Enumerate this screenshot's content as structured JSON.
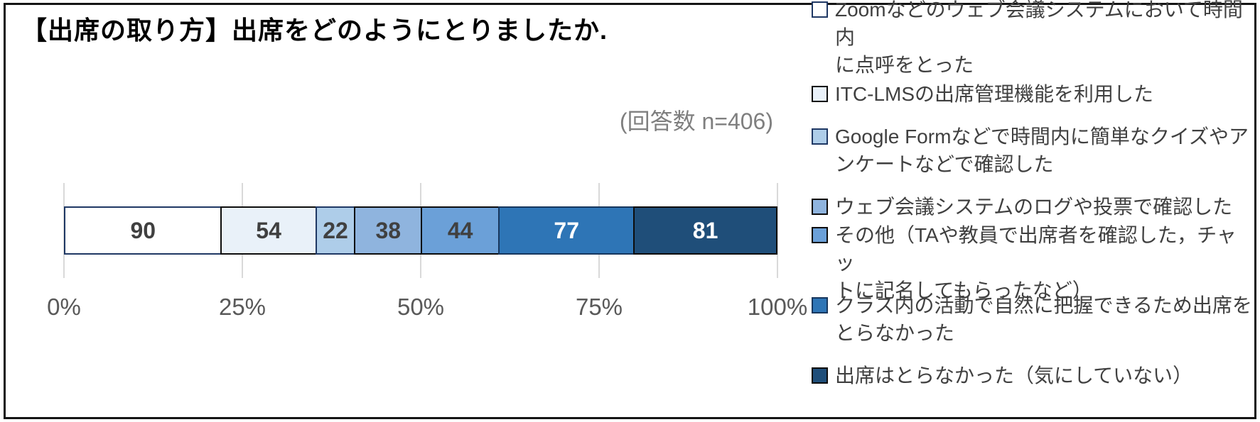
{
  "frame": {
    "border_color": "#141414",
    "background": "#ffffff"
  },
  "header": {
    "title": "【出席の取り方】出席をどのようにとりましたか."
  },
  "annotation": {
    "text": "(回答数 n=406)"
  },
  "chart_data": {
    "type": "bar",
    "orientation": "horizontal-stacked",
    "title": "【出席の取り方】出席をどのようにとりましたか.",
    "subtitle": "(回答数 n=406)",
    "total": 406,
    "xlim": [
      0,
      100
    ],
    "x_ticks": [
      "0%",
      "25%",
      "50%",
      "75%",
      "100%"
    ],
    "grid": true,
    "legend_position": "right",
    "segments": [
      {
        "label": "Zoomなどのウェブ会議システムにおいて時間内に点呼をとった",
        "value": 90,
        "fill": "#ffffff",
        "border": "#1f3864",
        "text_color": "#404040"
      },
      {
        "label": "ITC-LMSの出席管理機能を利用した",
        "value": 54,
        "fill": "#e9f1f9",
        "border": "#0d0d0d",
        "text_color": "#404040"
      },
      {
        "label": "Google Formなどで時間内に簡単なクイズやアンケートなどで確認した",
        "value": 22,
        "fill": "#aecde9",
        "border": "#1f3864",
        "text_color": "#404040"
      },
      {
        "label": "ウェブ会議システムのログや投票で確認した",
        "value": 38,
        "fill": "#8fb4de",
        "border": "#0d0d0d",
        "text_color": "#404040"
      },
      {
        "label": "その他（TAや教員で出席者を確認した，チャットに記名してもらったなど）",
        "value": 44,
        "fill": "#6ba0d8",
        "border": "#0d0d0d",
        "text_color": "#404040"
      },
      {
        "label": "クラス内の活動で自然に把握できるため出席をとらなかった",
        "value": 77,
        "fill": "#2e75b6",
        "border": "#17375e",
        "text_color": "#ffffff"
      },
      {
        "label": "出席はとらなかった（気にしていない）",
        "value": 81,
        "fill": "#1f4e79",
        "border": "#0d0d0d",
        "text_color": "#ffffff"
      }
    ]
  },
  "legend": {
    "items": [
      {
        "display": "Zoomなどのウェブ会議システムにおいて時間内\nに点呼をとった"
      },
      {
        "display": "ITC-LMSの出席管理機能を利用した"
      },
      {
        "display": "Google Formなどで時間内に簡単なクイズやア\nンケートなどで確認した"
      },
      {
        "display": "ウェブ会議システムのログや投票で確認した"
      },
      {
        "display": "その他（TAや教員で出席者を確認した，チャッ\nトに記名してもらったなど）"
      },
      {
        "display": "クラス内の活動で自然に把握できるため出席を\nとらなかった"
      },
      {
        "display": "出席はとらなかった（気にしていない）"
      }
    ]
  },
  "colors": {
    "gridline": "#d9d9d9",
    "tick_label": "#595959",
    "legend_text": "#404040",
    "annotation_text": "#7f7f7f",
    "title_text": "#000000"
  }
}
